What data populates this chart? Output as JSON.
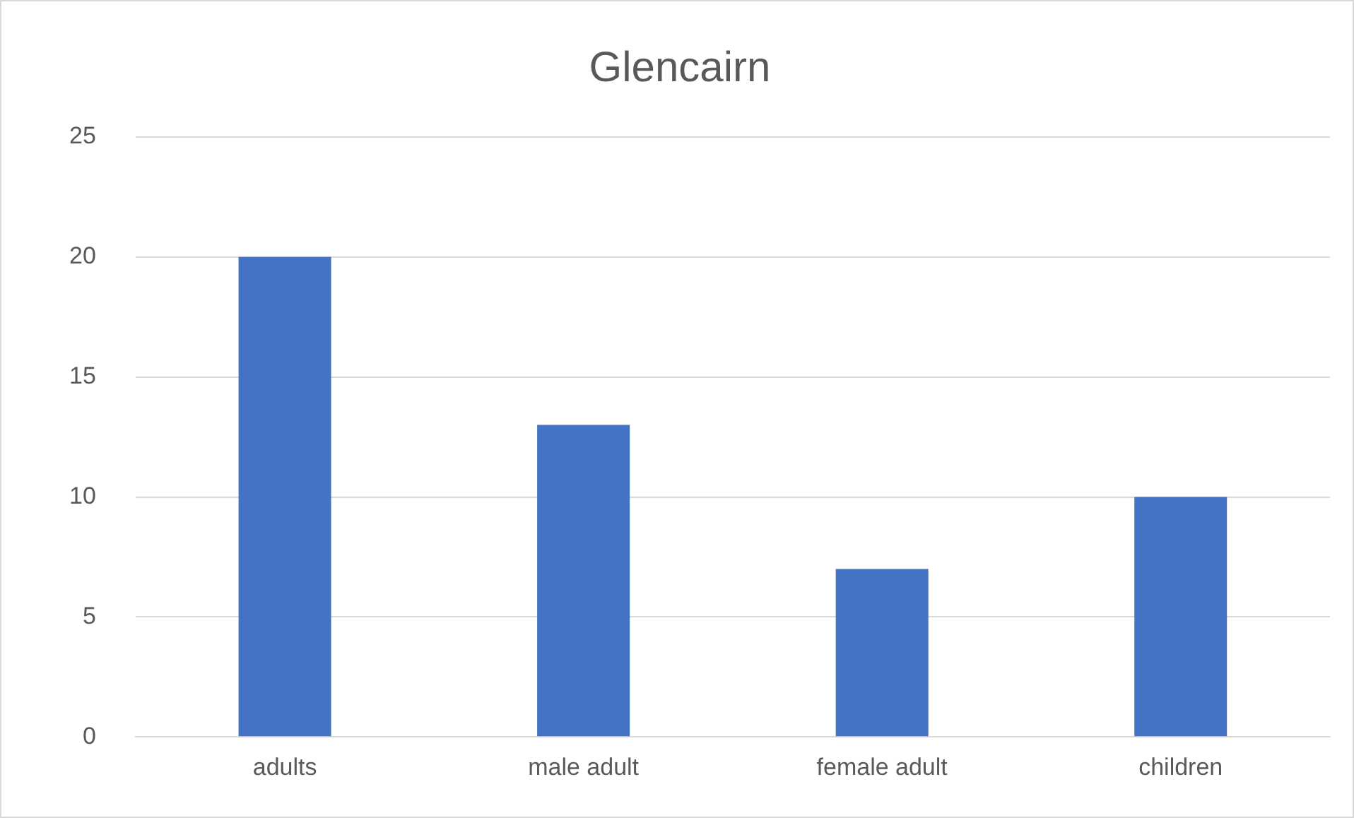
{
  "chart_data": {
    "type": "bar",
    "title": "Glencairn",
    "categories": [
      "adults",
      "male adult",
      "female adult",
      "children"
    ],
    "values": [
      20,
      13,
      7,
      10
    ],
    "color": "#4472c4",
    "ylim": [
      0,
      25
    ],
    "yticks": [
      0,
      5,
      10,
      15,
      20,
      25
    ],
    "grid": "y"
  }
}
